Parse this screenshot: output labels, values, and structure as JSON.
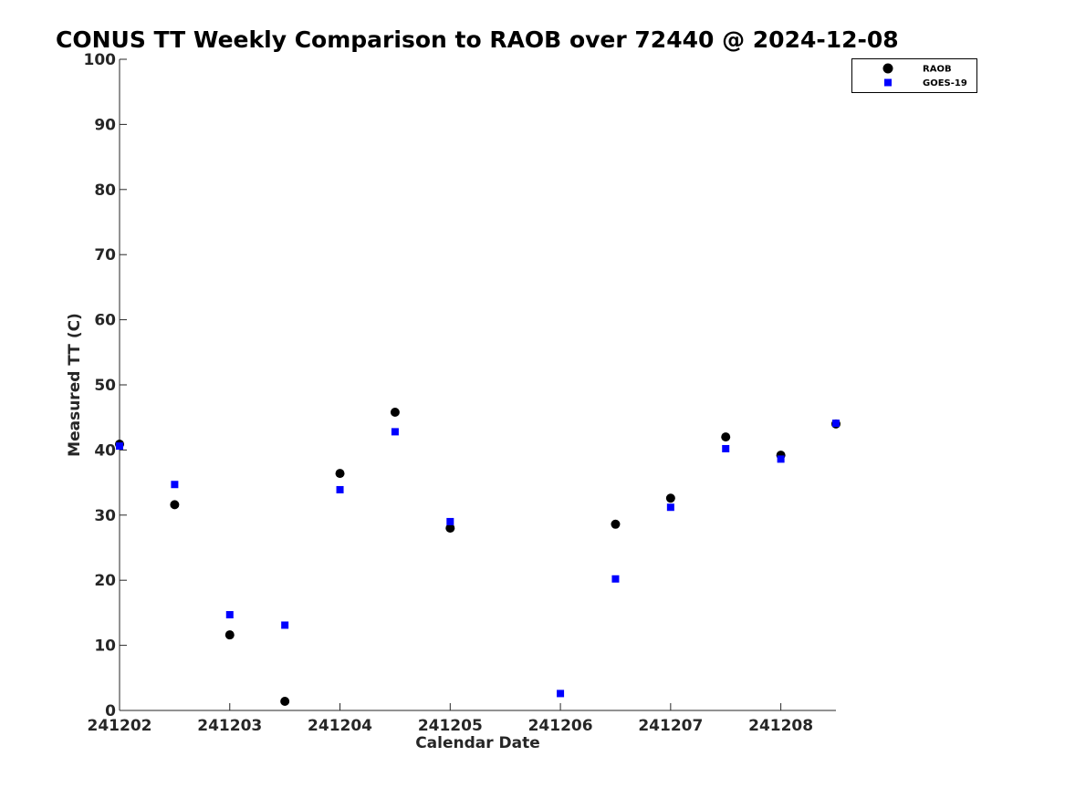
{
  "chart_data": {
    "type": "scatter",
    "title": "CONUS TT Weekly Comparison to RAOB over 72440 @ 2024-12-08",
    "xlabel": "Calendar Date",
    "ylabel": "Measured TT (C)",
    "x_tick_labels": [
      "241202",
      "241203",
      "241204",
      "241205",
      "241206",
      "241207",
      "241208"
    ],
    "y_tick_labels": [
      "0",
      "10",
      "20",
      "30",
      "40",
      "50",
      "60",
      "70",
      "80",
      "90",
      "100"
    ],
    "xlim": [
      "2024-12-02 00:00",
      "2024-12-08 12:00"
    ],
    "ylim": [
      0,
      100
    ],
    "grid": false,
    "legend_position": "top-right",
    "series": [
      {
        "name": "RAOB",
        "color": "#000000",
        "marker": "circle",
        "x": [
          "2024-12-02 00:00",
          "2024-12-02 12:00",
          "2024-12-03 00:00",
          "2024-12-03 12:00",
          "2024-12-04 00:00",
          "2024-12-04 12:00",
          "2024-12-05 00:00",
          "2024-12-06 12:00",
          "2024-12-07 00:00",
          "2024-12-07 12:00",
          "2024-12-08 00:00",
          "2024-12-08 12:00"
        ],
        "y": [
          40.9,
          31.6,
          11.6,
          1.4,
          36.4,
          45.8,
          28.0,
          28.6,
          32.6,
          42.0,
          39.2,
          44.0
        ]
      },
      {
        "name": "GOES-19",
        "color": "#0000ff",
        "marker": "square",
        "x": [
          "2024-12-02 00:00",
          "2024-12-02 12:00",
          "2024-12-03 00:00",
          "2024-12-03 12:00",
          "2024-12-04 00:00",
          "2024-12-04 12:00",
          "2024-12-05 00:00",
          "2024-12-06 00:00",
          "2024-12-06 12:00",
          "2024-12-07 00:00",
          "2024-12-07 12:00",
          "2024-12-08 00:00",
          "2024-12-08 12:00"
        ],
        "y": [
          40.6,
          34.7,
          14.7,
          13.1,
          33.9,
          42.8,
          29.0,
          2.6,
          20.2,
          31.2,
          40.2,
          38.6,
          44.1
        ]
      }
    ]
  }
}
